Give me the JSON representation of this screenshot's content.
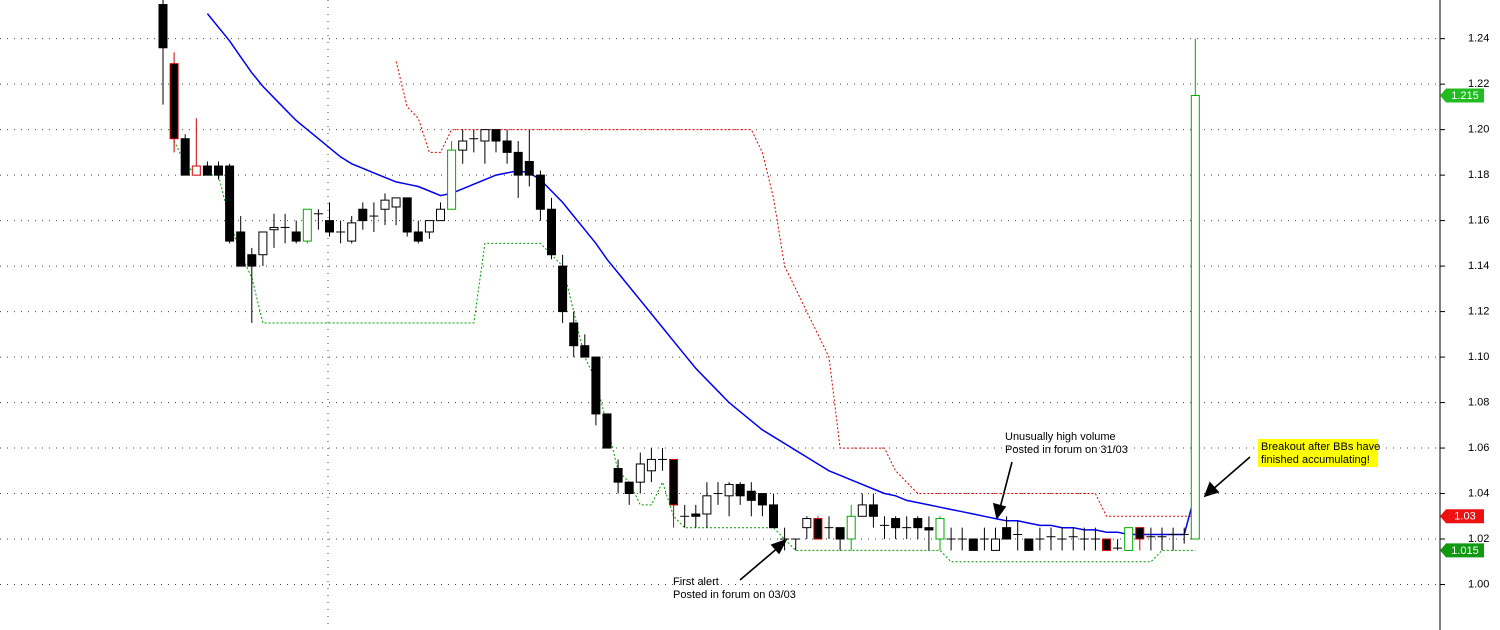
{
  "chart_data": {
    "type": "candlestick",
    "categories": [
      null,
      null,
      null,
      null,
      null,
      null,
      null,
      null,
      null,
      null,
      null,
      null,
      null,
      null,
      null,
      null,
      null,
      null,
      null,
      null,
      null,
      null,
      null,
      null,
      null,
      null,
      null,
      null,
      null,
      null,
      null,
      null,
      null,
      null,
      null,
      null,
      null,
      null,
      null,
      null,
      null,
      null,
      null,
      null,
      null,
      null,
      null,
      null,
      null,
      null,
      null,
      null,
      null,
      null,
      null,
      null,
      null,
      null,
      null,
      null,
      null,
      null,
      null,
      null,
      null,
      null,
      null,
      null,
      null,
      null,
      null,
      null,
      null,
      null,
      null,
      null,
      null,
      null,
      null,
      null,
      null,
      null,
      null,
      null,
      null,
      null,
      null,
      null,
      null,
      null,
      null,
      null,
      null,
      null
    ],
    "open": [
      1.255,
      1.229,
      1.196,
      1.18,
      1.184,
      1.184,
      1.184,
      1.155,
      1.145,
      1.145,
      1.156,
      1.157,
      1.155,
      1.151,
      1.163,
      1.16,
      1.155,
      1.151,
      1.165,
      1.162,
      1.165,
      1.166,
      1.17,
      1.155,
      1.155,
      1.16,
      1.165,
      1.191,
      1.196,
      1.195,
      1.2,
      1.195,
      1.19,
      1.186,
      1.18,
      1.165,
      1.14,
      1.115,
      1.105,
      1.1,
      1.075,
      1.051,
      1.045,
      1.045,
      1.05,
      1.055,
      1.055,
      1.03,
      1.031,
      1.031,
      1.04,
      1.039,
      1.044,
      1.041,
      1.04,
      1.035,
      1.02,
      1.02,
      1.025,
      1.029,
      1.025,
      1.025,
      1.02,
      1.03,
      1.035,
      1.026,
      1.029,
      1.025,
      1.029,
      1.025,
      1.02,
      1.02,
      1.02,
      1.02,
      1.02,
      1.015,
      1.025,
      1.022,
      1.02,
      1.02,
      1.021,
      1.02,
      1.021,
      1.02,
      1.02,
      1.02,
      1.016,
      1.015,
      1.025,
      1.021,
      1.021,
      1.022,
      1.022,
      1.02
    ],
    "high": [
      1.257,
      1.234,
      1.198,
      1.205,
      1.186,
      1.186,
      1.185,
      1.162,
      1.148,
      1.155,
      1.163,
      1.163,
      1.16,
      1.165,
      1.165,
      1.168,
      1.16,
      1.162,
      1.168,
      1.168,
      1.172,
      1.17,
      1.17,
      1.16,
      1.16,
      1.168,
      1.195,
      1.2,
      1.2,
      1.2,
      1.2,
      1.2,
      1.195,
      1.2,
      1.182,
      1.17,
      1.145,
      1.12,
      1.11,
      1.1,
      1.075,
      1.055,
      1.045,
      1.058,
      1.06,
      1.06,
      1.055,
      1.035,
      1.035,
      1.045,
      1.045,
      1.045,
      1.045,
      1.045,
      1.04,
      1.04,
      1.025,
      1.02,
      1.03,
      1.03,
      1.03,
      1.025,
      1.035,
      1.04,
      1.04,
      1.03,
      1.03,
      1.03,
      1.03,
      1.03,
      1.03,
      1.025,
      1.025,
      1.02,
      1.025,
      1.025,
      1.03,
      1.028,
      1.02,
      1.025,
      1.025,
      1.025,
      1.025,
      1.025,
      1.025,
      1.02,
      1.02,
      1.025,
      1.025,
      1.025,
      1.025,
      1.025,
      1.025,
      1.24
    ],
    "low": [
      1.211,
      1.19,
      1.18,
      1.18,
      1.18,
      1.178,
      1.15,
      1.14,
      1.115,
      1.14,
      1.148,
      1.15,
      1.15,
      1.15,
      1.156,
      1.153,
      1.15,
      1.15,
      1.156,
      1.155,
      1.158,
      1.158,
      1.153,
      1.15,
      1.152,
      1.16,
      1.165,
      1.185,
      1.19,
      1.185,
      1.19,
      1.185,
      1.17,
      1.175,
      1.16,
      1.143,
      1.115,
      1.1,
      1.1,
      1.07,
      1.06,
      1.04,
      1.035,
      1.04,
      1.045,
      1.05,
      1.025,
      1.025,
      1.025,
      1.025,
      1.035,
      1.03,
      1.035,
      1.03,
      1.03,
      1.025,
      1.015,
      1.015,
      1.02,
      1.02,
      1.02,
      1.015,
      1.015,
      1.03,
      1.025,
      1.02,
      1.02,
      1.02,
      1.02,
      1.015,
      1.015,
      1.015,
      1.015,
      1.015,
      1.015,
      1.015,
      1.02,
      1.015,
      1.015,
      1.015,
      1.015,
      1.015,
      1.015,
      1.015,
      1.015,
      1.015,
      1.015,
      1.015,
      1.015,
      1.015,
      1.015,
      1.015,
      1.018,
      1.02
    ],
    "close": [
      1.236,
      1.196,
      1.18,
      1.184,
      1.18,
      1.18,
      1.151,
      1.14,
      1.14,
      1.155,
      1.157,
      1.157,
      1.151,
      1.165,
      1.163,
      1.155,
      1.155,
      1.159,
      1.16,
      1.162,
      1.169,
      1.17,
      1.155,
      1.151,
      1.16,
      1.165,
      1.191,
      1.195,
      1.196,
      1.2,
      1.195,
      1.19,
      1.18,
      1.18,
      1.165,
      1.145,
      1.12,
      1.105,
      1.1,
      1.075,
      1.06,
      1.045,
      1.04,
      1.053,
      1.055,
      1.055,
      1.035,
      1.03,
      1.03,
      1.039,
      1.04,
      1.044,
      1.039,
      1.037,
      1.035,
      1.025,
      1.02,
      1.02,
      1.029,
      1.02,
      1.025,
      1.02,
      1.03,
      1.035,
      1.03,
      1.026,
      1.025,
      1.025,
      1.025,
      1.024,
      1.029,
      1.02,
      1.02,
      1.015,
      1.02,
      1.02,
      1.02,
      1.022,
      1.015,
      1.02,
      1.021,
      1.02,
      1.021,
      1.02,
      1.02,
      1.015,
      1.016,
      1.025,
      1.02,
      1.021,
      1.021,
      1.022,
      1.022,
      1.215
    ],
    "edge_colors": [
      "#000000",
      "#cc0000",
      "#000000",
      "#cc0000",
      "#000000",
      "#000000",
      "#000000",
      "#000000",
      "#000000",
      "#000000",
      "#000000",
      "#000000",
      "#000000",
      "#00aa00",
      "#000000",
      "#000000",
      "#000000",
      "#000000",
      "#000000",
      "#000000",
      "#000000",
      "#000000",
      "#000000",
      "#000000",
      "#000000",
      "#000000",
      "#00aa00",
      "#000000",
      "#000000",
      "#000000",
      "#000000",
      "#000000",
      "#000000",
      "#000000",
      "#000000",
      "#000000",
      "#000000",
      "#000000",
      "#000000",
      "#000000",
      "#000000",
      "#000000",
      "#000000",
      "#000000",
      "#000000",
      "#000000",
      "#cc0000",
      "#000000",
      "#000000",
      "#000000",
      "#000000",
      "#000000",
      "#000000",
      "#000000",
      "#000000",
      "#000000",
      "#000000",
      "#000000",
      "#000000",
      "#cc0000",
      "#000000",
      "#000000",
      "#00aa00",
      "#000000",
      "#000000",
      "#000000",
      "#000000",
      "#000000",
      "#000000",
      "#000000",
      "#00aa00",
      "#000000",
      "#000000",
      "#000000",
      "#000000",
      "#000000",
      "#000000",
      "#000000",
      "#000000",
      "#000000",
      "#000000",
      "#000000",
      "#000000",
      "#000000",
      "#000000",
      "#cc0000",
      "#000000",
      "#00aa00",
      "#cc0000",
      "#000000",
      "#000000",
      "#000000",
      "#000000",
      "#00aa00"
    ],
    "lines": [
      {
        "color": "#0000ee",
        "dashed": false,
        "values": [
          null,
          null,
          null,
          null,
          1.251,
          1.245,
          1.239,
          1.232,
          1.225,
          1.219,
          1.214,
          1.209,
          1.204,
          1.2,
          1.196,
          1.192,
          1.188,
          1.185,
          1.183,
          1.181,
          1.179,
          1.177,
          1.176,
          1.175,
          1.173,
          1.171,
          1.172,
          1.174,
          1.176,
          1.178,
          1.18,
          1.181,
          1.182,
          1.181,
          1.178,
          1.173,
          1.168,
          1.162,
          1.156,
          1.15,
          1.143,
          1.137,
          1.131,
          1.125,
          1.119,
          1.113,
          1.107,
          1.101,
          1.095,
          1.09,
          1.085,
          1.08,
          1.076,
          1.072,
          1.068,
          1.065,
          1.062,
          1.059,
          1.056,
          1.053,
          1.05,
          1.048,
          1.046,
          1.044,
          1.042,
          1.04,
          1.039,
          1.037,
          1.036,
          1.035,
          1.034,
          1.033,
          1.032,
          1.031,
          1.03,
          1.029,
          1.028,
          1.028,
          1.027,
          1.026,
          1.026,
          1.025,
          1.025,
          1.024,
          1.024,
          1.023,
          1.023,
          1.022,
          1.022,
          1.022,
          1.022,
          1.022,
          1.022,
          1.04
        ]
      },
      {
        "color": "#dd0000",
        "dashed": true,
        "values": [
          null,
          null,
          null,
          null,
          null,
          null,
          null,
          null,
          null,
          null,
          null,
          null,
          null,
          null,
          null,
          null,
          null,
          null,
          null,
          null,
          null,
          1.23,
          1.21,
          1.205,
          1.19,
          1.19,
          1.2,
          1.2,
          1.2,
          1.2,
          1.2,
          1.2,
          1.2,
          1.2,
          1.2,
          1.2,
          1.2,
          1.2,
          1.2,
          1.2,
          1.2,
          1.2,
          1.2,
          1.2,
          1.2,
          1.2,
          1.2,
          1.2,
          1.2,
          1.2,
          1.2,
          1.2,
          1.2,
          1.2,
          1.19,
          1.17,
          1.14,
          1.13,
          1.12,
          1.11,
          1.1,
          1.06,
          1.06,
          1.06,
          1.06,
          1.06,
          1.05,
          1.045,
          1.04,
          1.04,
          1.04,
          1.04,
          1.04,
          1.04,
          1.04,
          1.04,
          1.04,
          1.04,
          1.04,
          1.04,
          1.04,
          1.04,
          1.04,
          1.04,
          1.04,
          1.03,
          1.03,
          1.03,
          1.03,
          1.03,
          1.03,
          1.03,
          1.03,
          1.03
        ]
      },
      {
        "color": "#009900",
        "dashed": true,
        "values": [
          null,
          1.195,
          1.185,
          1.18,
          1.18,
          1.18,
          1.16,
          1.145,
          1.135,
          1.115,
          1.115,
          1.115,
          1.115,
          1.115,
          1.115,
          1.115,
          1.115,
          1.115,
          1.115,
          1.115,
          1.115,
          1.115,
          1.115,
          1.115,
          1.115,
          1.115,
          1.115,
          1.115,
          1.115,
          1.15,
          1.15,
          1.15,
          1.15,
          1.15,
          1.15,
          1.145,
          1.14,
          1.12,
          1.1,
          1.09,
          1.07,
          1.05,
          1.045,
          1.035,
          1.035,
          1.045,
          1.03,
          1.025,
          1.025,
          1.025,
          1.025,
          1.025,
          1.025,
          1.025,
          1.025,
          1.025,
          1.02,
          1.015,
          1.015,
          1.015,
          1.015,
          1.015,
          1.015,
          1.015,
          1.015,
          1.015,
          1.015,
          1.015,
          1.015,
          1.015,
          1.015,
          1.01,
          1.01,
          1.01,
          1.01,
          1.01,
          1.01,
          1.01,
          1.01,
          1.01,
          1.01,
          1.01,
          1.01,
          1.01,
          1.01,
          1.01,
          1.01,
          1.01,
          1.01,
          1.01,
          1.015,
          1.015,
          1.015,
          1.015
        ]
      }
    ],
    "ylim": [
      0.98,
      1.257
    ],
    "yticks": [
      {
        "value": 1.0,
        "label": "1.00"
      },
      1.02,
      1.04,
      1.06,
      1.08,
      {
        "value": 1.1,
        "label": "1.10"
      },
      1.12,
      1.14,
      1.16,
      1.18,
      {
        "value": 1.2,
        "label": "1.20"
      },
      1.22,
      1.24
    ],
    "grid": true,
    "price_tags": [
      {
        "value": 1.215,
        "color": "#22bb22"
      },
      {
        "value": 1.03,
        "color": "#ee1111"
      },
      {
        "value": 1.015,
        "color": "#119911"
      }
    ],
    "annotations": [
      {
        "lines": [
          "Unusually high volume",
          "Posted in forum on 31/03"
        ]
      },
      {
        "lines": [
          "First alert",
          "Posted in forum on 03/03"
        ]
      },
      {
        "lines": [
          "Breakout after BBs have",
          "finished accumulating!"
        ],
        "highlight": "#ffff00"
      }
    ]
  }
}
